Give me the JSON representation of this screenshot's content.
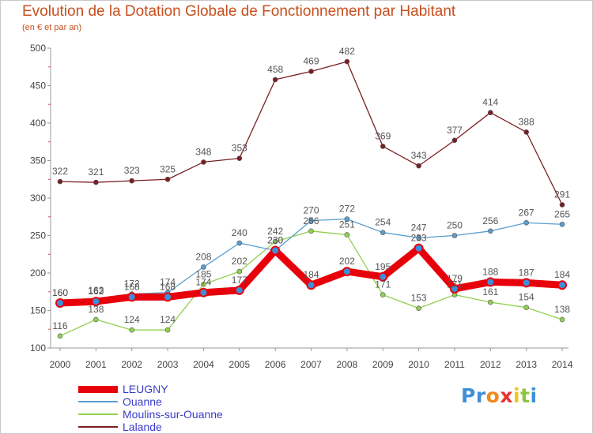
{
  "chart_data": {
    "type": "line",
    "title": "Evolution de la Dotation Globale de Fonctionnement par Habitant",
    "subtitle": "(en € et par an)",
    "xlabel": "",
    "ylabel": "",
    "x": [
      "2000",
      "2001",
      "2002",
      "2003",
      "2004",
      "2005",
      "2006",
      "2007",
      "2008",
      "2009",
      "2010",
      "2011",
      "2012",
      "2013",
      "2014"
    ],
    "ylim": [
      100,
      500
    ],
    "yticks": [
      100,
      150,
      200,
      250,
      300,
      350,
      400,
      450,
      500
    ],
    "grid": false,
    "legend_position": "bottom-left",
    "series": [
      {
        "name": "LEUGNY",
        "color": "#e8000b",
        "values": [
          160,
          162,
          168,
          168,
          174,
          177,
          230,
          184,
          202,
          195,
          233,
          179,
          188,
          187,
          184
        ]
      },
      {
        "name": "Ouanne",
        "color": "#5a9ecf",
        "values": [
          160,
          163,
          172,
          174,
          208,
          240,
          230,
          270,
          272,
          254,
          247,
          250,
          256,
          267,
          265
        ]
      },
      {
        "name": "Moulins-sur-Ouanne",
        "color": "#92d050",
        "values": [
          116,
          138,
          124,
          124,
          185,
          202,
          242,
          256,
          251,
          171,
          153,
          171,
          161,
          154,
          138
        ]
      },
      {
        "name": "Lalande",
        "color": "#7a1e22",
        "values": [
          322,
          321,
          323,
          325,
          348,
          353,
          458,
          469,
          482,
          369,
          343,
          377,
          414,
          388,
          291
        ]
      }
    ]
  },
  "logo": {
    "letters": [
      {
        "char": "P",
        "color": "#3d8fd8"
      },
      {
        "char": "r",
        "color": "#3d8fd8"
      },
      {
        "char": "o",
        "color": "#f08a1c"
      },
      {
        "char": "x",
        "color": "#e8342b"
      },
      {
        "char": "i",
        "color": "#f0c419"
      },
      {
        "char": "t",
        "color": "#8cc63f"
      },
      {
        "char": "i",
        "color": "#3d8fd8"
      }
    ]
  }
}
